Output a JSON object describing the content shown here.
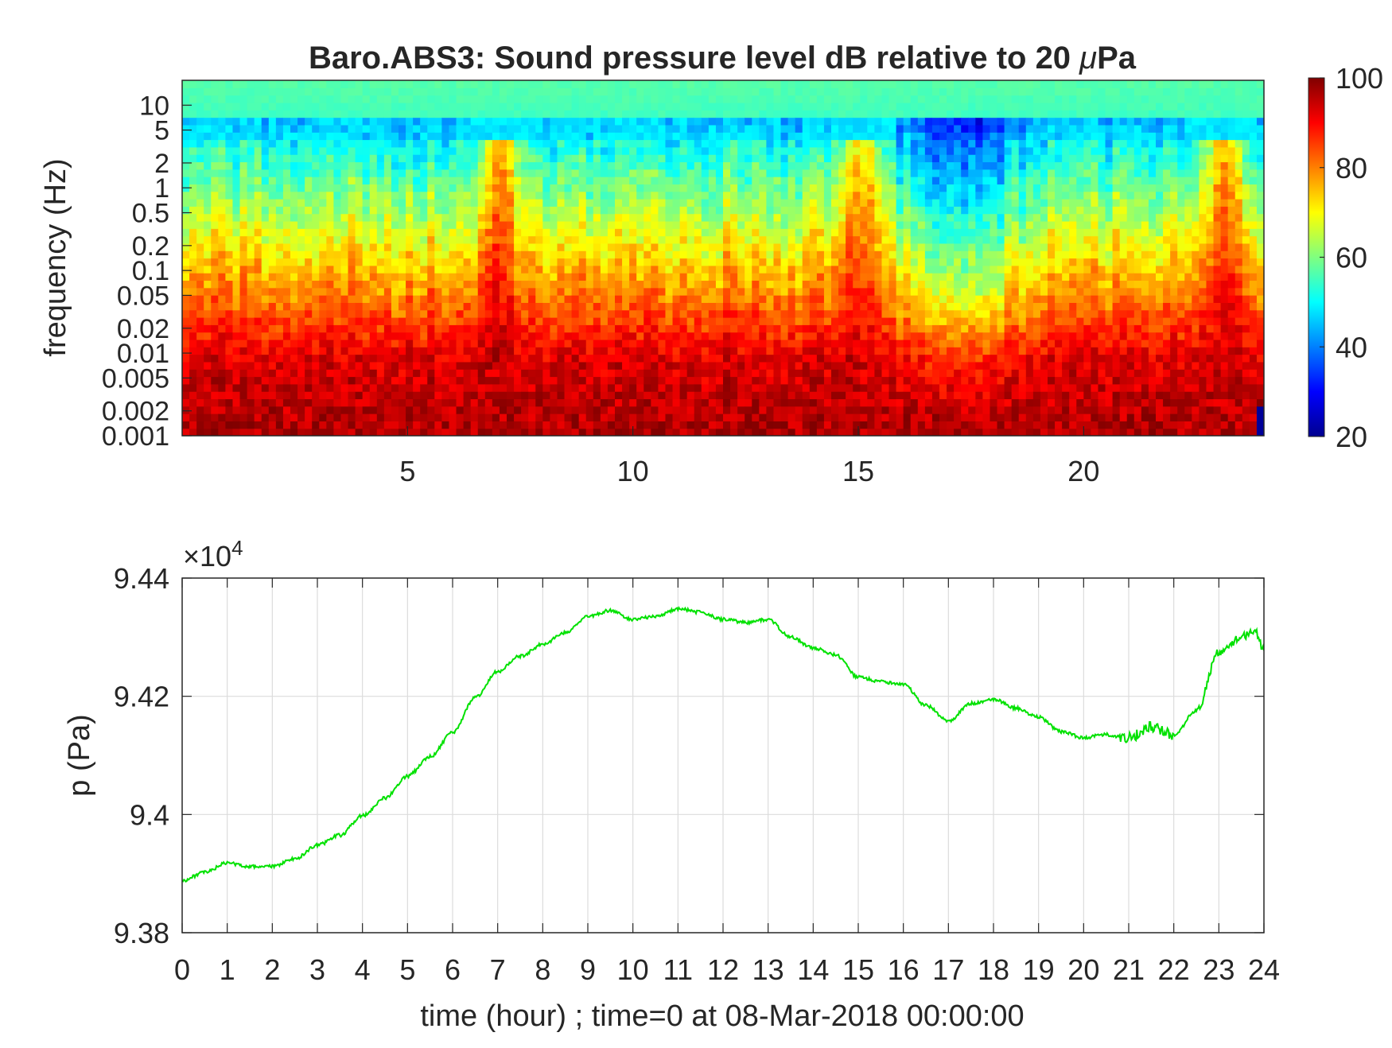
{
  "chart_data": [
    {
      "type": "heatmap",
      "title_prefix": "Baro.ABS3: Sound pressure level dB relative to 20 ",
      "title_mu": "μ",
      "title_suffix": "Pa",
      "ylabel": "frequency (Hz)",
      "xlabel": "",
      "xlim": [
        0,
        24
      ],
      "x_ticks": [
        "5",
        "10",
        "15",
        "20"
      ],
      "x_tick_values": [
        5,
        10,
        15,
        20
      ],
      "y_scale": "log",
      "ylim": [
        0.001,
        20
      ],
      "y_ticks": [
        "10",
        "5",
        "2",
        "1",
        "0.5",
        "0.2",
        "0.1",
        "0.05",
        "0.02",
        "0.01",
        "0.005",
        "0.002",
        "0.001"
      ],
      "y_tick_values": [
        10,
        5,
        2,
        1,
        0.5,
        0.2,
        0.1,
        0.05,
        0.02,
        0.01,
        0.005,
        0.002,
        0.001
      ],
      "colormap": "jet",
      "colorbar": {
        "clim": [
          20,
          100
        ],
        "ticks": [
          "100",
          "80",
          "60",
          "40",
          "20"
        ],
        "tick_values": [
          100,
          80,
          60,
          40,
          20
        ]
      },
      "hot_spikes_hours": [
        7.1,
        15.1,
        23.1
      ],
      "quiet_band_hours": [
        16.2,
        18.4
      ],
      "grid": false
    },
    {
      "type": "line",
      "xlabel": "time (hour) ; time=0 at 08-Mar-2018 00:00:00",
      "ylabel": "p (Pa)",
      "y_multiplier_base": "×10",
      "y_multiplier_exp": "4",
      "xlim": [
        0,
        24
      ],
      "ylim": [
        9.38,
        9.44
      ],
      "x_ticks": [
        "0",
        "1",
        "2",
        "3",
        "4",
        "5",
        "6",
        "7",
        "8",
        "9",
        "10",
        "11",
        "12",
        "13",
        "14",
        "15",
        "16",
        "17",
        "18",
        "19",
        "20",
        "21",
        "22",
        "23",
        "24"
      ],
      "y_ticks": [
        "9.44",
        "9.42",
        "9.4",
        "9.38"
      ],
      "y_tick_values": [
        9.44,
        9.42,
        9.4,
        9.38
      ],
      "grid": true,
      "series": [
        {
          "color": "#00e100",
          "x": [
            0,
            0.5,
            1,
            1.5,
            2,
            2.5,
            3,
            3.5,
            4,
            4.5,
            5,
            5.5,
            6,
            6.5,
            7,
            7.5,
            8,
            8.5,
            9,
            9.5,
            10,
            10.5,
            11,
            11.5,
            12,
            12.5,
            13,
            13.5,
            14,
            14.5,
            15,
            15.5,
            16,
            16.5,
            17,
            17.5,
            18,
            18.5,
            19,
            19.5,
            20,
            20.5,
            21,
            21.5,
            22,
            22.5,
            23,
            23.5,
            23.8,
            24
          ],
          "y": [
            9.3888,
            9.3902,
            9.3918,
            9.3912,
            9.3912,
            9.3925,
            9.3948,
            9.3965,
            9.3998,
            9.4028,
            9.4065,
            9.4098,
            9.4138,
            9.4198,
            9.4242,
            9.4268,
            9.4288,
            9.4308,
            9.4335,
            9.4345,
            9.433,
            9.4335,
            9.4348,
            9.4342,
            9.433,
            9.4325,
            9.433,
            9.43,
            9.4282,
            9.427,
            9.4232,
            9.4225,
            9.422,
            9.4185,
            9.4158,
            9.4188,
            9.4195,
            9.418,
            9.4165,
            9.414,
            9.413,
            9.4135,
            9.413,
            9.4148,
            9.4135,
            9.4175,
            9.4275,
            9.43,
            9.431,
            9.428
          ]
        }
      ]
    }
  ]
}
